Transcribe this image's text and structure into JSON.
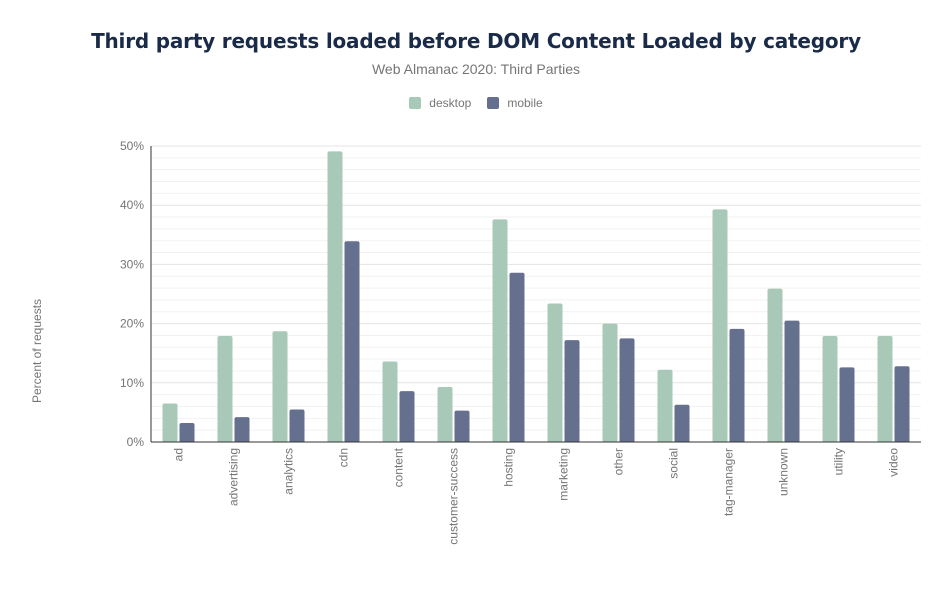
{
  "chart_data": {
    "type": "bar",
    "title": "Third party requests loaded before DOM Content Loaded by category",
    "subtitle": "Web Almanac 2020: Third Parties",
    "ylabel": "Percent of requests",
    "xlabel": "",
    "ylim": [
      0,
      50
    ],
    "yticks": [
      "0%",
      "10%",
      "20%",
      "30%",
      "40%",
      "50%"
    ],
    "grid": true,
    "legend": "top-center",
    "categories": [
      "ad",
      "advertising",
      "analytics",
      "cdn",
      "content",
      "customer-success",
      "hosting",
      "marketing",
      "other",
      "social",
      "tag-manager",
      "unknown",
      "utility",
      "video"
    ],
    "series": [
      {
        "name": "desktop",
        "color": "#a8c8b8",
        "values": [
          6.5,
          17.9,
          18.7,
          49.1,
          13.6,
          9.3,
          37.6,
          23.4,
          20.0,
          12.2,
          39.3,
          25.9,
          17.9,
          17.9
        ]
      },
      {
        "name": "mobile",
        "color": "#64708d",
        "values": [
          3.2,
          4.2,
          5.5,
          33.9,
          8.6,
          5.3,
          28.6,
          17.2,
          17.5,
          6.3,
          19.1,
          20.5,
          12.6,
          12.8
        ]
      }
    ]
  }
}
